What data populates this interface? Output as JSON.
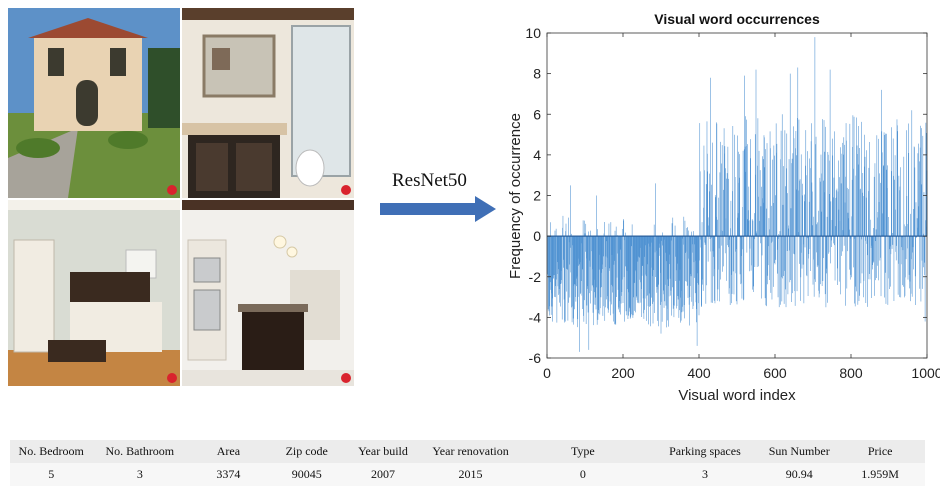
{
  "arrow_label": "ResNet50",
  "photos": [
    {
      "name": "photo-house-exterior",
      "sky": "#5d91c8",
      "main": "#e9d3b3",
      "accent": "#6c8f3c",
      "dark": "#3c3a2f"
    },
    {
      "name": "photo-bathroom",
      "sky": "#ede7dc",
      "main": "#5a3f2c",
      "accent": "#d7c3a5",
      "dark": "#2e2620"
    },
    {
      "name": "photo-bedroom",
      "sky": "#d9dcd3",
      "main": "#c48543",
      "accent": "#f1ece2",
      "dark": "#3a2a1f"
    },
    {
      "name": "photo-kitchen",
      "sky": "#f2f0ec",
      "main": "#4a3225",
      "accent": "#c9cbcd",
      "dark": "#2a1d16"
    }
  ],
  "chart_data": {
    "type": "bar",
    "title": "Visual word occurrences",
    "xlabel": "Visual word index",
    "ylabel": "Frequency of occurrence",
    "xlim": [
      0,
      1000
    ],
    "ylim": [
      -6,
      10
    ],
    "xticks": [
      0,
      200,
      400,
      600,
      800,
      1000
    ],
    "yticks": [
      -6,
      -4,
      -2,
      0,
      2,
      4,
      6,
      8,
      10
    ],
    "bar_color": "#4a8fd1",
    "num_bars": 1000,
    "segments": [
      {
        "x_range": [
          1,
          400
        ],
        "typical_range": [
          -4.5,
          0.5
        ],
        "extremes": [
          [
            62,
            2.5
          ],
          [
            85,
            -5.7
          ],
          [
            110,
            -5.6
          ],
          [
            130,
            2.0
          ],
          [
            285,
            2.6
          ],
          [
            300,
            -4.8
          ],
          [
            395,
            -5.4
          ]
        ]
      },
      {
        "x_range": [
          401,
          1000
        ],
        "typical_range": [
          -3.5,
          6.0
        ],
        "extremes": [
          [
            430,
            7.8
          ],
          [
            520,
            7.9
          ],
          [
            550,
            8.2
          ],
          [
            640,
            8.0
          ],
          [
            660,
            8.3
          ],
          [
            705,
            9.8
          ],
          [
            745,
            8.2
          ],
          [
            880,
            7.2
          ],
          [
            960,
            6.2
          ],
          [
            995,
            -4.2
          ]
        ]
      }
    ]
  },
  "table": {
    "headers": [
      "No. Bedroom",
      "No. Bathroom",
      "Area",
      "Zip code",
      "Year build",
      "Year renovation",
      "Type",
      "Parking spaces",
      "Sun Number",
      "Price"
    ],
    "rows": [
      [
        "5",
        "3",
        "3374",
        "90045",
        "2007",
        "2015",
        "0",
        "3",
        "90.94",
        "1.959M"
      ]
    ]
  }
}
